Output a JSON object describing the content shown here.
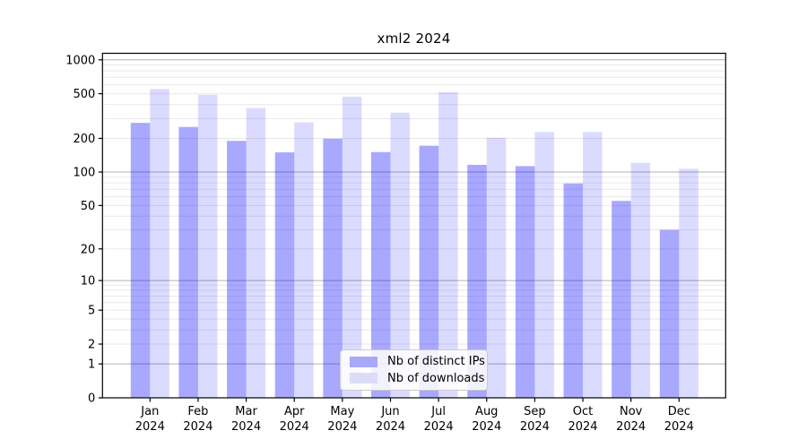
{
  "chart_data": {
    "type": "bar",
    "title": "xml2 2024",
    "categories": [
      "Jan",
      "Feb",
      "Mar",
      "Apr",
      "May",
      "Jun",
      "Jul",
      "Aug",
      "Sep",
      "Oct",
      "Nov",
      "Dec"
    ],
    "year_label": "2024",
    "series": [
      {
        "name": "Nb of distinct IPs",
        "values": [
          275,
          253,
          190,
          150,
          199,
          151,
          172,
          116,
          113,
          79,
          55,
          30
        ],
        "color": "rgba(0,0,255,0.34)",
        "swatch_hex": "#a8a8f8"
      },
      {
        "name": "Nb of downloads",
        "values": [
          550,
          490,
          372,
          278,
          470,
          339,
          517,
          203,
          228,
          228,
          121,
          107
        ],
        "color": "rgba(0,0,255,0.14)",
        "swatch_hex": "#dcdcf9"
      }
    ],
    "xlabel": "",
    "ylabel": "",
    "y_axis": {
      "scale": "log1p",
      "ticks": [
        0,
        1,
        2,
        5,
        10,
        20,
        50,
        100,
        200,
        500,
        1000
      ],
      "range": [
        0,
        1000
      ]
    },
    "grid": {
      "horizontal": true,
      "minor": true,
      "major_color": "#b0b0b0",
      "minor_color": "#e9e9e9"
    },
    "legend": {
      "position": "lower center"
    },
    "colors": {
      "frame": "#000000",
      "background": "#ffffff"
    }
  }
}
